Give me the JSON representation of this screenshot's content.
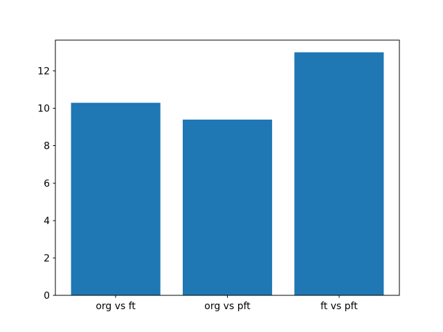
{
  "chart_data": {
    "type": "bar",
    "title": "",
    "xlabel": "",
    "ylabel": "",
    "categories": [
      "org vs ft",
      "org vs pft",
      "ft vs pft"
    ],
    "values": [
      10.3,
      9.4,
      13.0
    ],
    "yticks": [
      0,
      2,
      4,
      6,
      8,
      10,
      12
    ],
    "ylim": [
      0,
      13.65
    ],
    "xlim": [
      -0.54,
      2.54
    ],
    "bar_width": 0.8,
    "bar_color": "#1f77b4",
    "axis_color": "#000000",
    "tick_label_color": "#000000",
    "background_color": "#ffffff",
    "grid": false,
    "legend": false
  }
}
